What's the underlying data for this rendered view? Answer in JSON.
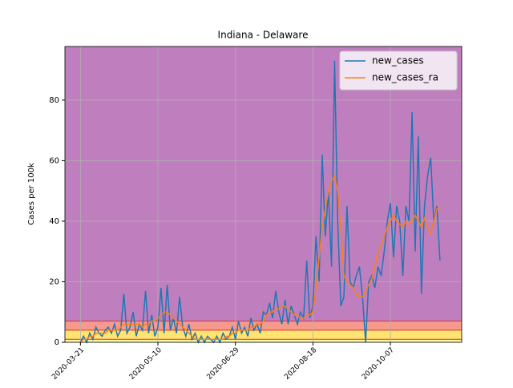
{
  "chart_data": {
    "type": "line",
    "title": "Indiana - Delaware",
    "y_label": "Cases per 100k",
    "x": [
      "2020-03-21",
      "2020-03-23",
      "2020-03-25",
      "2020-03-27",
      "2020-03-29",
      "2020-03-31",
      "2020-04-02",
      "2020-04-04",
      "2020-04-06",
      "2020-04-08",
      "2020-04-10",
      "2020-04-12",
      "2020-04-14",
      "2020-04-16",
      "2020-04-18",
      "2020-04-20",
      "2020-04-22",
      "2020-04-24",
      "2020-04-26",
      "2020-04-28",
      "2020-04-30",
      "2020-05-02",
      "2020-05-04",
      "2020-05-06",
      "2020-05-08",
      "2020-05-10",
      "2020-05-12",
      "2020-05-14",
      "2020-05-16",
      "2020-05-18",
      "2020-05-20",
      "2020-05-22",
      "2020-05-24",
      "2020-05-26",
      "2020-05-28",
      "2020-05-30",
      "2020-06-01",
      "2020-06-03",
      "2020-06-05",
      "2020-06-07",
      "2020-06-09",
      "2020-06-11",
      "2020-06-13",
      "2020-06-15",
      "2020-06-17",
      "2020-06-19",
      "2020-06-21",
      "2020-06-23",
      "2020-06-25",
      "2020-06-27",
      "2020-06-29",
      "2020-07-01",
      "2020-07-03",
      "2020-07-05",
      "2020-07-07",
      "2020-07-09",
      "2020-07-11",
      "2020-07-13",
      "2020-07-15",
      "2020-07-17",
      "2020-07-19",
      "2020-07-21",
      "2020-07-23",
      "2020-07-25",
      "2020-07-27",
      "2020-07-29",
      "2020-07-31",
      "2020-08-02",
      "2020-08-04",
      "2020-08-06",
      "2020-08-08",
      "2020-08-10",
      "2020-08-12",
      "2020-08-14",
      "2020-08-16",
      "2020-08-18",
      "2020-08-20",
      "2020-08-22",
      "2020-08-24",
      "2020-08-26",
      "2020-08-28",
      "2020-08-30",
      "2020-09-01",
      "2020-09-03",
      "2020-09-05",
      "2020-09-07",
      "2020-09-09",
      "2020-09-11",
      "2020-09-13",
      "2020-09-15",
      "2020-09-17",
      "2020-09-19",
      "2020-09-21",
      "2020-09-23",
      "2020-09-25",
      "2020-09-27",
      "2020-09-29",
      "2020-10-01",
      "2020-10-03",
      "2020-10-05",
      "2020-10-07",
      "2020-10-09",
      "2020-10-11",
      "2020-10-13",
      "2020-10-15",
      "2020-10-17",
      "2020-10-19",
      "2020-10-21",
      "2020-10-23",
      "2020-10-25",
      "2020-10-27",
      "2020-10-29",
      "2020-10-31",
      "2020-11-02",
      "2020-11-04",
      "2020-11-06",
      "2020-11-08"
    ],
    "series": [
      {
        "name": "new_cases",
        "color": "#1f77b4",
        "values": [
          0,
          2,
          0,
          3,
          1,
          5,
          3,
          2,
          4,
          5,
          3,
          6,
          2,
          4,
          16,
          3,
          5,
          10,
          2,
          6,
          4,
          17,
          3,
          9,
          2,
          5,
          18,
          3,
          19,
          4,
          8,
          3,
          15,
          5,
          2,
          6,
          1,
          3,
          0,
          2,
          0,
          2,
          1,
          0,
          2,
          0,
          3,
          1,
          2,
          5,
          1,
          7,
          3,
          5,
          2,
          8,
          4,
          6,
          3,
          10,
          9,
          13,
          8,
          17,
          10,
          6,
          14,
          6,
          12,
          9,
          6,
          10,
          8,
          27,
          8,
          12,
          35,
          20,
          62,
          35,
          50,
          25,
          93,
          40,
          12,
          15,
          45,
          20,
          18,
          22,
          25,
          15,
          0,
          20,
          22,
          18,
          25,
          22,
          30,
          40,
          46,
          28,
          45,
          40,
          22,
          45,
          40,
          76,
          30,
          68,
          16,
          45,
          55,
          61,
          40,
          45,
          27
        ]
      },
      {
        "name": "new_cases_ra",
        "color": "#ff7f0e",
        "values": [
          0,
          1,
          1,
          2,
          2,
          3,
          3,
          3,
          3,
          4,
          4,
          4,
          4,
          5,
          6,
          6,
          6,
          6,
          6,
          6,
          5,
          6,
          6,
          7,
          7,
          8,
          9,
          10,
          10,
          9,
          8,
          7,
          6,
          5,
          4,
          3,
          2,
          1,
          1,
          1,
          1,
          1,
          1,
          1,
          1,
          1,
          1,
          2,
          2,
          3,
          3,
          4,
          4,
          4,
          4,
          5,
          5,
          6,
          6,
          7,
          9,
          10,
          10,
          11,
          11,
          12,
          12,
          11,
          10,
          9,
          9,
          8,
          8,
          9,
          9,
          10,
          18,
          28,
          38,
          44,
          50,
          53,
          55,
          50,
          38,
          22,
          20,
          19,
          18,
          16,
          15,
          15,
          17,
          19,
          21,
          25,
          30,
          32,
          35,
          38,
          40,
          42,
          40,
          39,
          38,
          40,
          39,
          40,
          42,
          40,
          38,
          41,
          38,
          36,
          40,
          44,
          45
        ]
      }
    ],
    "xlim": [
      "2020-03-11",
      "2020-11-22"
    ],
    "xticks": [
      "2020-03-21",
      "2020-05-10",
      "2020-06-29",
      "2020-08-18",
      "2020-10-07"
    ],
    "ylim": [
      0,
      97.7
    ],
    "yticks": [
      0,
      20,
      40,
      60,
      80
    ],
    "bands": [
      {
        "from": 0,
        "color": "#fff7a0"
      },
      {
        "from": 1,
        "color": "#ffe470"
      },
      {
        "from": 4,
        "color": "#f59a8c"
      },
      {
        "from": 7,
        "color": "#bf7fbf"
      }
    ],
    "grid": true,
    "legend": "upper right"
  }
}
